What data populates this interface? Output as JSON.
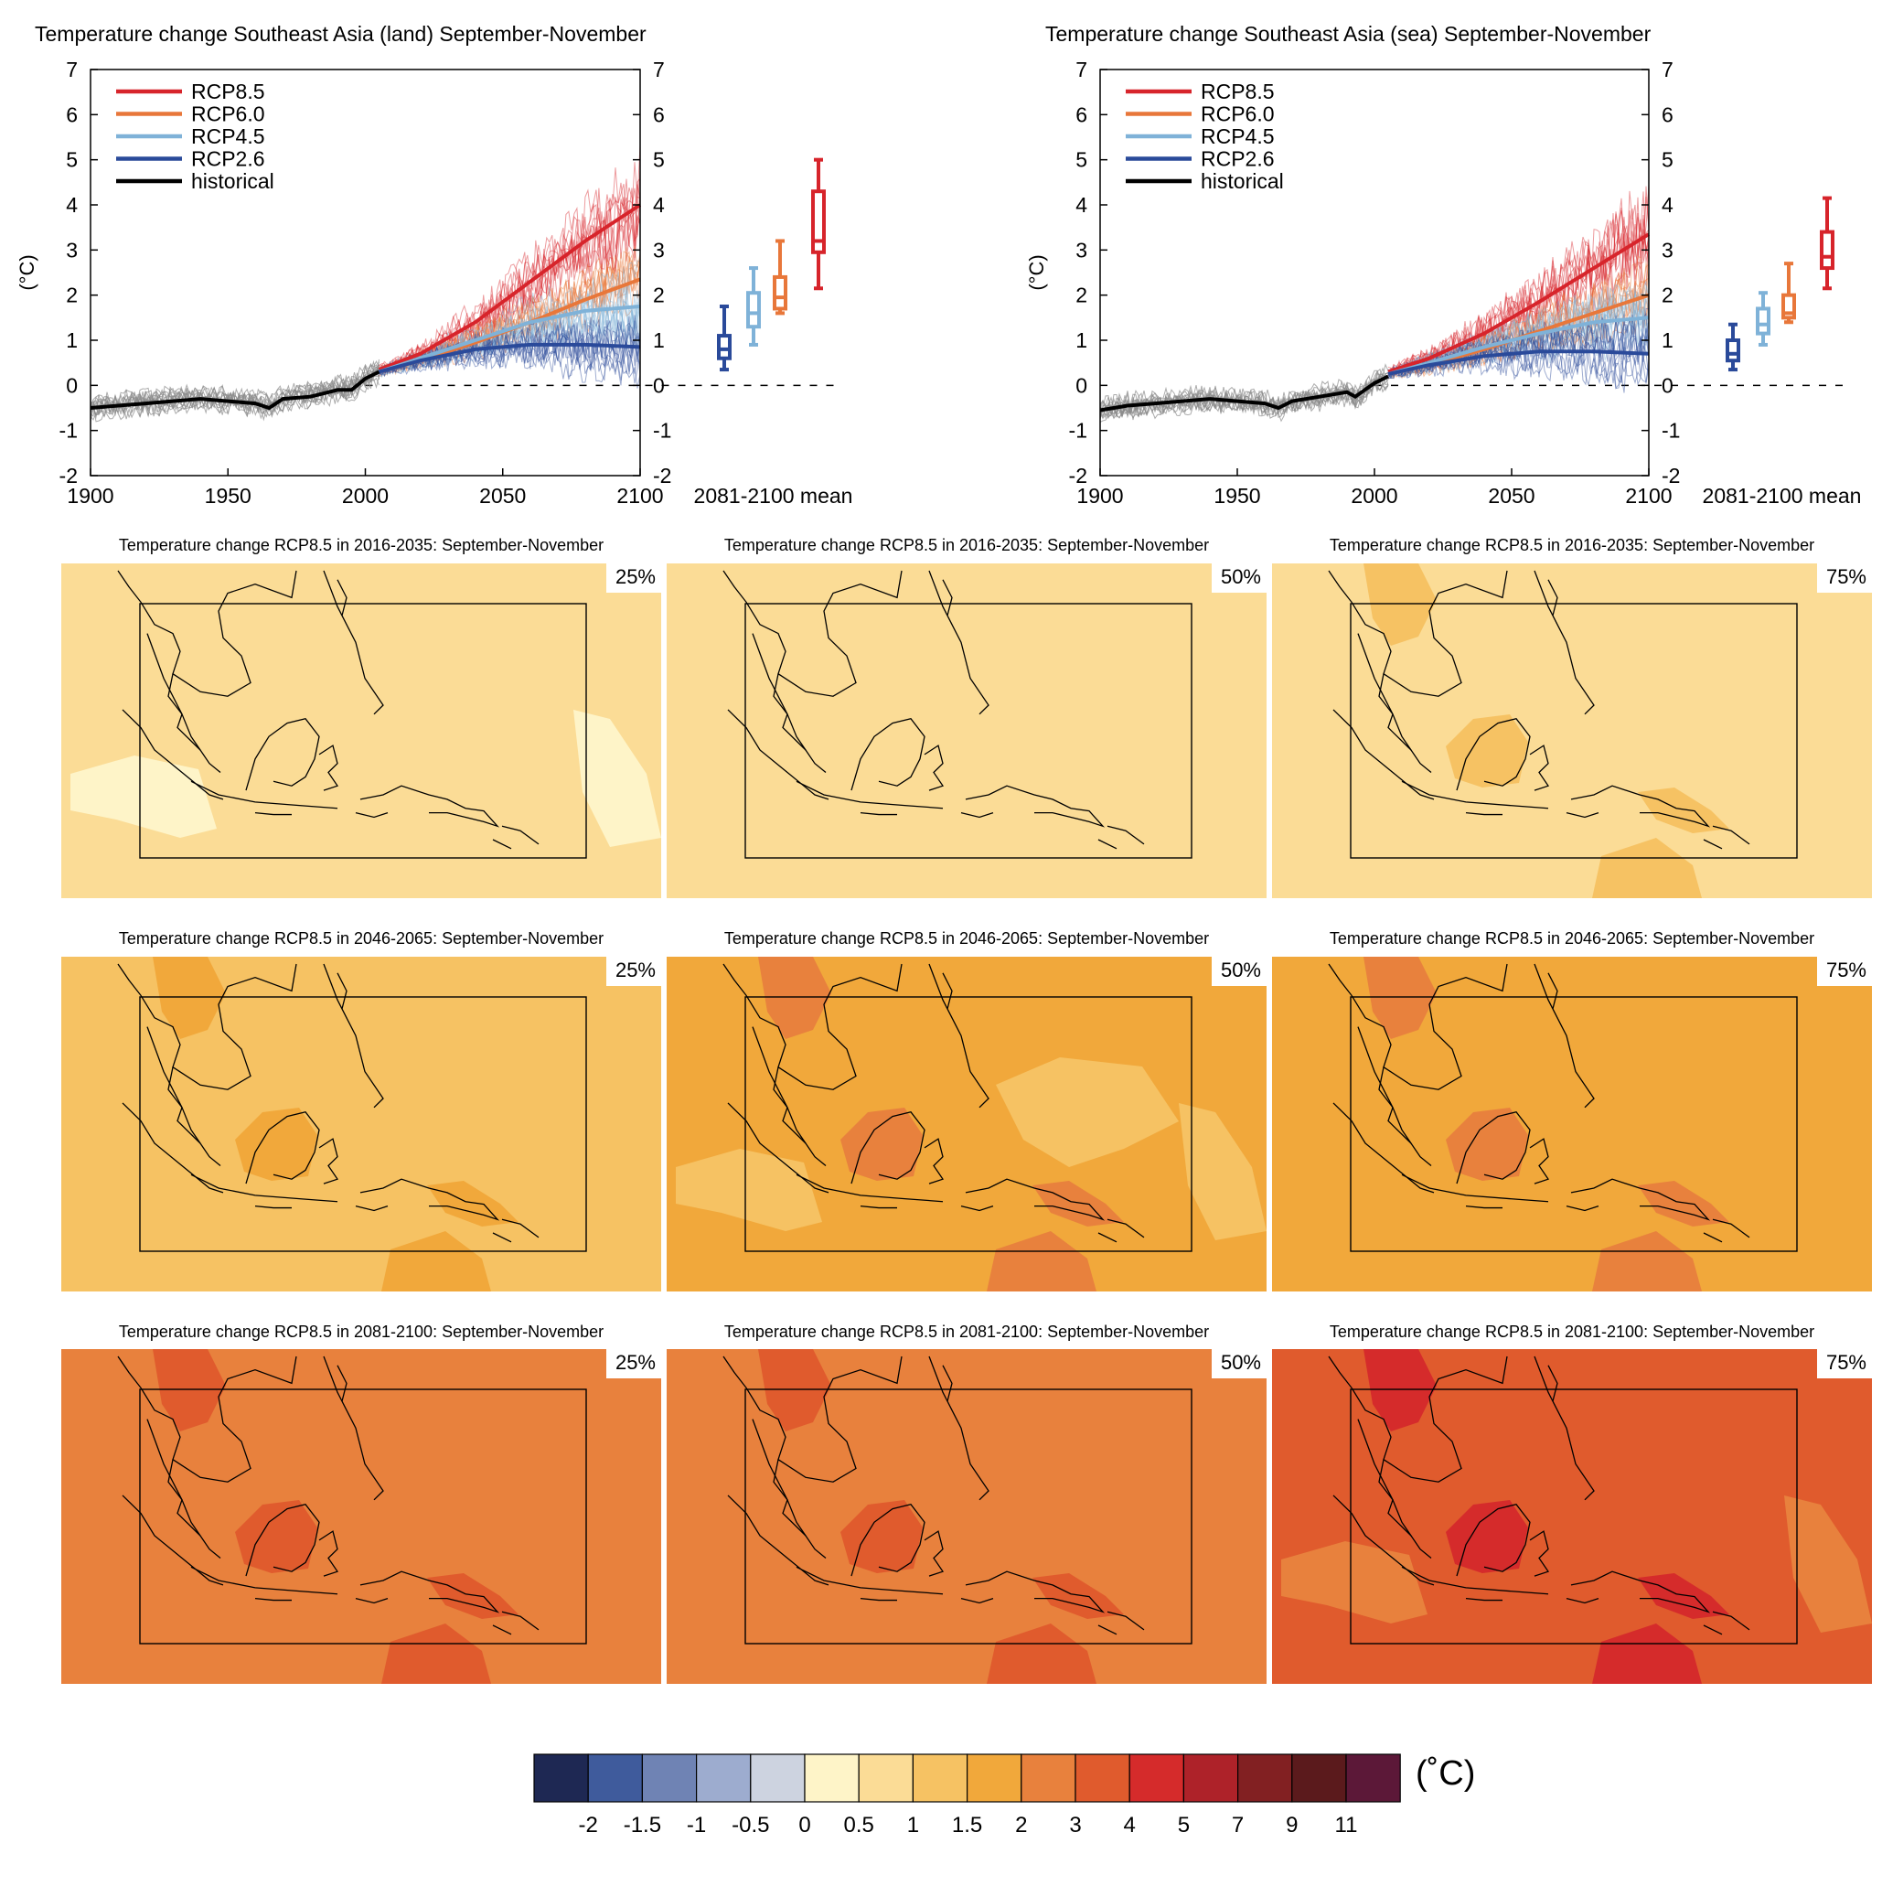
{
  "chart_data": [
    {
      "type": "line",
      "title": "Temperature change Southeast Asia (land) September-November",
      "ylabel": "(°C)",
      "xlim": [
        1900,
        2100
      ],
      "ylim": [
        -2,
        7
      ],
      "x_ticks": [
        "1900",
        "1950",
        "2000",
        "2050",
        "2100"
      ],
      "y_ticks": [
        "-2",
        "-1",
        "0",
        "1",
        "2",
        "3",
        "4",
        "5",
        "6",
        "7"
      ],
      "boxplot_label": "2081-2100 mean",
      "series": [
        {
          "name": "RCP8.5",
          "color": "#d7242b",
          "x": [
            2005,
            2020,
            2040,
            2060,
            2080,
            2100
          ],
          "values": [
            0.35,
            0.7,
            1.4,
            2.3,
            3.2,
            4.0
          ]
        },
        {
          "name": "RCP6.0",
          "color": "#e8773a",
          "x": [
            2005,
            2020,
            2040,
            2060,
            2080,
            2100
          ],
          "values": [
            0.3,
            0.55,
            0.95,
            1.4,
            1.9,
            2.35
          ]
        },
        {
          "name": "RCP4.5",
          "color": "#7fb2d8",
          "x": [
            2005,
            2020,
            2040,
            2060,
            2080,
            2100
          ],
          "values": [
            0.3,
            0.6,
            1.0,
            1.4,
            1.65,
            1.75
          ]
        },
        {
          "name": "RCP2.6",
          "color": "#2a4a9a",
          "x": [
            2005,
            2020,
            2040,
            2060,
            2080,
            2100
          ],
          "values": [
            0.3,
            0.55,
            0.8,
            0.9,
            0.9,
            0.85
          ]
        },
        {
          "name": "historical",
          "color": "#000000",
          "x": [
            1900,
            1910,
            1920,
            1930,
            1940,
            1950,
            1960,
            1965,
            1970,
            1980,
            1990,
            1995,
            2000,
            2005
          ],
          "values": [
            -0.5,
            -0.45,
            -0.4,
            -0.35,
            -0.3,
            -0.35,
            -0.4,
            -0.5,
            -0.3,
            -0.25,
            -0.1,
            -0.1,
            0.15,
            0.3
          ]
        }
      ],
      "boxplots": [
        {
          "name": "RCP2.6",
          "color": "#2a4a9a",
          "min": 0.35,
          "q1": 0.6,
          "median": 0.8,
          "q3": 1.1,
          "max": 1.75
        },
        {
          "name": "RCP4.5",
          "color": "#7fb2d8",
          "min": 0.9,
          "q1": 1.3,
          "median": 1.6,
          "q3": 2.05,
          "max": 2.6
        },
        {
          "name": "RCP6.0",
          "color": "#e8773a",
          "min": 1.6,
          "q1": 1.7,
          "median": 1.95,
          "q3": 2.4,
          "max": 3.2
        },
        {
          "name": "RCP8.5",
          "color": "#d7242b",
          "min": 2.15,
          "q1": 2.95,
          "median": 3.2,
          "q3": 4.3,
          "max": 5.0
        }
      ]
    },
    {
      "type": "line",
      "title": "Temperature change Southeast Asia (sea) September-November",
      "ylabel": "(°C)",
      "xlim": [
        1900,
        2100
      ],
      "ylim": [
        -2,
        7
      ],
      "x_ticks": [
        "1900",
        "1950",
        "2000",
        "2050",
        "2100"
      ],
      "y_ticks": [
        "-2",
        "-1",
        "0",
        "1",
        "2",
        "3",
        "4",
        "5",
        "6",
        "7"
      ],
      "boxplot_label": "2081-2100 mean",
      "series": [
        {
          "name": "RCP8.5",
          "color": "#d7242b",
          "x": [
            2005,
            2020,
            2040,
            2060,
            2080,
            2100
          ],
          "values": [
            0.3,
            0.6,
            1.15,
            1.85,
            2.6,
            3.35
          ]
        },
        {
          "name": "RCP6.0",
          "color": "#e8773a",
          "x": [
            2005,
            2020,
            2040,
            2060,
            2080,
            2100
          ],
          "values": [
            0.25,
            0.45,
            0.8,
            1.2,
            1.6,
            2.0
          ]
        },
        {
          "name": "RCP4.5",
          "color": "#7fb2d8",
          "x": [
            2005,
            2020,
            2040,
            2060,
            2080,
            2100
          ],
          "values": [
            0.25,
            0.5,
            0.85,
            1.15,
            1.4,
            1.5
          ]
        },
        {
          "name": "RCP2.6",
          "color": "#2a4a9a",
          "x": [
            2005,
            2020,
            2040,
            2060,
            2080,
            2100
          ],
          "values": [
            0.25,
            0.45,
            0.65,
            0.75,
            0.75,
            0.7
          ]
        },
        {
          "name": "historical",
          "color": "#000000",
          "x": [
            1900,
            1910,
            1920,
            1930,
            1940,
            1950,
            1960,
            1965,
            1970,
            1980,
            1990,
            1993,
            2000,
            2005
          ],
          "values": [
            -0.55,
            -0.45,
            -0.4,
            -0.35,
            -0.3,
            -0.35,
            -0.4,
            -0.5,
            -0.35,
            -0.25,
            -0.15,
            -0.25,
            0.05,
            0.2
          ]
        }
      ],
      "boxplots": [
        {
          "name": "RCP2.6",
          "color": "#2a4a9a",
          "min": 0.35,
          "q1": 0.55,
          "median": 0.7,
          "q3": 1.0,
          "max": 1.35
        },
        {
          "name": "RCP4.5",
          "color": "#7fb2d8",
          "min": 0.9,
          "q1": 1.15,
          "median": 1.35,
          "q3": 1.7,
          "max": 2.05
        },
        {
          "name": "RCP6.0",
          "color": "#e8773a",
          "min": 1.4,
          "q1": 1.5,
          "median": 1.6,
          "q3": 2.0,
          "max": 2.7
        },
        {
          "name": "RCP8.5",
          "color": "#d7242b",
          "min": 2.15,
          "q1": 2.6,
          "median": 2.85,
          "q3": 3.4,
          "max": 4.15
        }
      ]
    },
    {
      "type": "heatmap",
      "maps": [
        {
          "title": "Temperature change RCP8.5 in 2016-2035: September-November",
          "percentile": "25%",
          "base_class": "0.5-1",
          "patch_class": "0-0.5",
          "hot_class": null
        },
        {
          "title": "Temperature change RCP8.5 in 2016-2035: September-November",
          "percentile": "50%",
          "base_class": "0.5-1",
          "patch_class": null,
          "hot_class": null
        },
        {
          "title": "Temperature change RCP8.5 in 2016-2035: September-November",
          "percentile": "75%",
          "base_class": "0.5-1",
          "patch_class": null,
          "hot_class": "1-1.5"
        },
        {
          "title": "Temperature change RCP8.5 in 2046-2065: September-November",
          "percentile": "25%",
          "base_class": "1-1.5",
          "patch_class": null,
          "hot_class": "1.5-2"
        },
        {
          "title": "Temperature change RCP8.5 in 2046-2065: September-November",
          "percentile": "50%",
          "base_class": "1.5-2",
          "patch_class": "1-1.5",
          "hot_class": "2-3"
        },
        {
          "title": "Temperature change RCP8.5 in 2046-2065: September-November",
          "percentile": "75%",
          "base_class": "1.5-2",
          "patch_class": null,
          "hot_class": "2-3"
        },
        {
          "title": "Temperature change RCP8.5 in 2081-2100: September-November",
          "percentile": "25%",
          "base_class": "2-3",
          "patch_class": null,
          "hot_class": "3-4"
        },
        {
          "title": "Temperature change RCP8.5 in 2081-2100: September-November",
          "percentile": "50%",
          "base_class": "2-3",
          "patch_class": null,
          "hot_class": "3-4"
        },
        {
          "title": "Temperature change RCP8.5 in 2081-2100: September-November",
          "percentile": "75%",
          "base_class": "3-4",
          "patch_class": "2-3",
          "hot_class": "4-5"
        }
      ],
      "colorbar": {
        "unit": "(˚C)",
        "colors": [
          "#1e2853",
          "#3f5b9c",
          "#6f83b4",
          "#9daccf",
          "#cdd3e0",
          "#fef4c8",
          "#fbdc96",
          "#f6c263",
          "#f1a83b",
          "#e8813d",
          "#e05b2d",
          "#d52b2b",
          "#ae2229",
          "#822022",
          "#5b1a1c",
          "#5c1838"
        ],
        "ticks": [
          "-2",
          "-1.5",
          "-1",
          "-0.5",
          "0",
          "0.5",
          "1",
          "1.5",
          "2",
          "3",
          "4",
          "5",
          "7",
          "9",
          "11"
        ]
      }
    }
  ]
}
